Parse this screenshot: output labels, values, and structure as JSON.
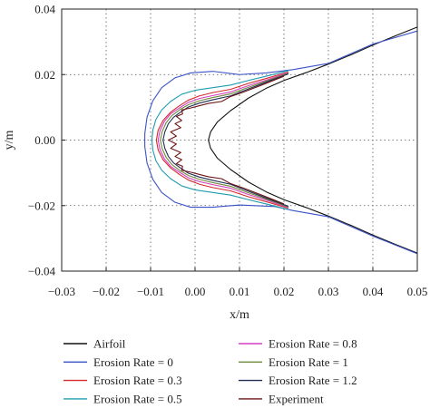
{
  "chart_data": {
    "type": "line",
    "xlabel": "x/m",
    "ylabel": "y/m",
    "xlim": [
      -0.03,
      0.05
    ],
    "ylim": [
      -0.04,
      0.04
    ],
    "xticks": [
      -0.03,
      -0.02,
      -0.01,
      0.0,
      0.01,
      0.02,
      0.03,
      0.04,
      0.05
    ],
    "xtick_labels": [
      "−0.03",
      "−0.02",
      "−0.01",
      "0.00",
      "0.01",
      "0.02",
      "0.03",
      "0.04",
      "0.05"
    ],
    "yticks": [
      -0.04,
      -0.02,
      0.0,
      0.02,
      0.04
    ],
    "ytick_labels": [
      "−0.04",
      "−0.02",
      "0.00",
      "0.02",
      "0.04"
    ],
    "grid": true,
    "legend_position": "below",
    "series": [
      {
        "name": "Airfoil",
        "color": "#111111",
        "points": [
          [
            0.05,
            -0.0345
          ],
          [
            0.045,
            -0.0318
          ],
          [
            0.04,
            -0.029
          ],
          [
            0.035,
            -0.026
          ],
          [
            0.03,
            -0.0232
          ],
          [
            0.025,
            -0.0206
          ],
          [
            0.02,
            -0.0182
          ],
          [
            0.016,
            -0.0158
          ],
          [
            0.012,
            -0.0128
          ],
          [
            0.008,
            -0.009
          ],
          [
            0.005,
            -0.0055
          ],
          [
            0.0035,
            -0.0025
          ],
          [
            0.003,
            0.0
          ],
          [
            0.0035,
            0.0025
          ],
          [
            0.005,
            0.0055
          ],
          [
            0.008,
            0.009
          ],
          [
            0.012,
            0.0128
          ],
          [
            0.016,
            0.0158
          ],
          [
            0.02,
            0.0182
          ],
          [
            0.025,
            0.0206
          ],
          [
            0.03,
            0.0232
          ],
          [
            0.035,
            0.026
          ],
          [
            0.04,
            0.029
          ],
          [
            0.045,
            0.0318
          ],
          [
            0.05,
            0.0345
          ]
        ]
      },
      {
        "name": "Erosion Rate = 0",
        "color": "#3b53c6",
        "points": [
          [
            0.05,
            -0.0347
          ],
          [
            0.04,
            -0.0293
          ],
          [
            0.03,
            -0.0234
          ],
          [
            0.022,
            -0.0215
          ],
          [
            0.018,
            -0.0203
          ],
          [
            0.01,
            -0.0198
          ],
          [
            0.004,
            -0.0205
          ],
          [
            -0.001,
            -0.0205
          ],
          [
            -0.0045,
            -0.019
          ],
          [
            -0.0075,
            -0.016
          ],
          [
            -0.0095,
            -0.012
          ],
          [
            -0.0108,
            -0.007
          ],
          [
            -0.0113,
            -0.002
          ],
          [
            -0.0113,
            0.002
          ],
          [
            -0.0108,
            0.007
          ],
          [
            -0.0095,
            0.012
          ],
          [
            -0.0075,
            0.016
          ],
          [
            -0.0045,
            0.019
          ],
          [
            -0.001,
            0.0205
          ],
          [
            0.004,
            0.021
          ],
          [
            0.01,
            0.02
          ],
          [
            0.016,
            0.0205
          ],
          [
            0.022,
            0.0215
          ],
          [
            0.03,
            0.0234
          ],
          [
            0.04,
            0.0293
          ],
          [
            0.05,
            0.0333
          ]
        ]
      },
      {
        "name": "Erosion Rate = 0.3",
        "color": "#d42a2a",
        "points": [
          [
            0.021,
            -0.0208
          ],
          [
            0.016,
            -0.0188
          ],
          [
            0.012,
            -0.0173
          ],
          [
            0.008,
            -0.0155
          ],
          [
            0.004,
            -0.0145
          ],
          [
            0.001,
            -0.0135
          ],
          [
            -0.0015,
            -0.0122
          ],
          [
            -0.0035,
            -0.0105
          ],
          [
            -0.0055,
            -0.0085
          ],
          [
            -0.0072,
            -0.006
          ],
          [
            -0.0083,
            -0.003
          ],
          [
            -0.0087,
            0.0
          ],
          [
            -0.0083,
            0.003
          ],
          [
            -0.0072,
            0.006
          ],
          [
            -0.0055,
            0.0085
          ],
          [
            -0.0035,
            0.0105
          ],
          [
            -0.0015,
            0.0122
          ],
          [
            0.001,
            0.0135
          ],
          [
            0.004,
            0.0145
          ],
          [
            0.008,
            0.0155
          ],
          [
            0.012,
            0.0173
          ],
          [
            0.016,
            0.0188
          ],
          [
            0.021,
            0.0208
          ]
        ]
      },
      {
        "name": "Erosion Rate = 0.5",
        "color": "#1f9bb0",
        "points": [
          [
            0.021,
            -0.0212
          ],
          [
            0.016,
            -0.0195
          ],
          [
            0.012,
            -0.0182
          ],
          [
            0.008,
            -0.0168
          ],
          [
            0.004,
            -0.016
          ],
          [
            0.0,
            -0.0152
          ],
          [
            -0.003,
            -0.014
          ],
          [
            -0.0055,
            -0.0118
          ],
          [
            -0.0075,
            -0.0092
          ],
          [
            -0.0088,
            -0.0063
          ],
          [
            -0.0095,
            -0.003
          ],
          [
            -0.0097,
            0.0
          ],
          [
            -0.0095,
            0.003
          ],
          [
            -0.0088,
            0.0063
          ],
          [
            -0.0075,
            0.0092
          ],
          [
            -0.0055,
            0.0118
          ],
          [
            -0.003,
            0.014
          ],
          [
            0.0,
            0.0152
          ],
          [
            0.004,
            0.016
          ],
          [
            0.008,
            0.0168
          ],
          [
            0.012,
            0.0182
          ],
          [
            0.016,
            0.0195
          ],
          [
            0.021,
            0.0212
          ]
        ]
      },
      {
        "name": "Erosion Rate = 0.8",
        "color": "#d43ec0",
        "points": [
          [
            0.021,
            -0.0206
          ],
          [
            0.016,
            -0.0183
          ],
          [
            0.012,
            -0.0166
          ],
          [
            0.008,
            -0.0147
          ],
          [
            0.004,
            -0.0136
          ],
          [
            0.001,
            -0.0127
          ],
          [
            -0.0015,
            -0.0115
          ],
          [
            -0.0035,
            -0.0098
          ],
          [
            -0.0055,
            -0.008
          ],
          [
            -0.0069,
            -0.0057
          ],
          [
            -0.0079,
            -0.0028
          ],
          [
            -0.0083,
            0.0
          ],
          [
            -0.0079,
            0.0028
          ],
          [
            -0.0069,
            0.0057
          ],
          [
            -0.0055,
            0.008
          ],
          [
            -0.0035,
            0.0098
          ],
          [
            -0.0015,
            0.0115
          ],
          [
            0.001,
            0.0127
          ],
          [
            0.004,
            0.0136
          ],
          [
            0.008,
            0.0147
          ],
          [
            0.012,
            0.0166
          ],
          [
            0.016,
            0.0183
          ],
          [
            0.021,
            0.0206
          ]
        ]
      },
      {
        "name": "Erosion Rate = 1",
        "color": "#6f8a3a",
        "points": [
          [
            0.021,
            -0.0204
          ],
          [
            0.016,
            -0.018
          ],
          [
            0.012,
            -0.0161
          ],
          [
            0.008,
            -0.0141
          ],
          [
            0.004,
            -0.013
          ],
          [
            0.001,
            -0.012
          ],
          [
            -0.0015,
            -0.0108
          ],
          [
            -0.0035,
            -0.0092
          ],
          [
            -0.0052,
            -0.0075
          ],
          [
            -0.0065,
            -0.0053
          ],
          [
            -0.0074,
            -0.0026
          ],
          [
            -0.0078,
            0.0
          ],
          [
            -0.0074,
            0.0026
          ],
          [
            -0.0065,
            0.0053
          ],
          [
            -0.0052,
            0.0075
          ],
          [
            -0.0035,
            0.0092
          ],
          [
            -0.0015,
            0.0108
          ],
          [
            0.001,
            0.012
          ],
          [
            0.004,
            0.013
          ],
          [
            0.008,
            0.0141
          ],
          [
            0.012,
            0.0161
          ],
          [
            0.016,
            0.018
          ],
          [
            0.021,
            0.0204
          ]
        ]
      },
      {
        "name": "Erosion Rate = 1.2",
        "color": "#1e2c52",
        "points": [
          [
            0.021,
            -0.0202
          ],
          [
            0.016,
            -0.0177
          ],
          [
            0.012,
            -0.0156
          ],
          [
            0.008,
            -0.0135
          ],
          [
            0.004,
            -0.0123
          ],
          [
            0.001,
            -0.0113
          ],
          [
            -0.0015,
            -0.0101
          ],
          [
            -0.0032,
            -0.0086
          ],
          [
            -0.0048,
            -0.007
          ],
          [
            -0.006,
            -0.005
          ],
          [
            -0.0068,
            -0.0025
          ],
          [
            -0.0072,
            0.0
          ],
          [
            -0.0068,
            0.0025
          ],
          [
            -0.006,
            0.005
          ],
          [
            -0.0048,
            0.007
          ],
          [
            -0.0032,
            0.0086
          ],
          [
            -0.0015,
            0.0101
          ],
          [
            0.001,
            0.0113
          ],
          [
            0.004,
            0.0123
          ],
          [
            0.008,
            0.0135
          ],
          [
            0.012,
            0.0156
          ],
          [
            0.016,
            0.0177
          ],
          [
            0.021,
            0.0202
          ]
        ]
      },
      {
        "name": "Experiment",
        "color": "#6b1414",
        "points": [
          [
            0.02,
            -0.0195
          ],
          [
            0.015,
            -0.0168
          ],
          [
            0.011,
            -0.0147
          ],
          [
            0.008,
            -0.0133
          ],
          [
            0.006,
            -0.0118
          ],
          [
            0.003,
            -0.0112
          ],
          [
            0.001,
            -0.0105
          ],
          [
            -0.001,
            -0.0098
          ],
          [
            -0.003,
            -0.0092
          ],
          [
            -0.0028,
            -0.008
          ],
          [
            -0.0042,
            -0.0072
          ],
          [
            -0.003,
            -0.006
          ],
          [
            -0.0045,
            -0.005
          ],
          [
            -0.0032,
            -0.0038
          ],
          [
            -0.0055,
            -0.0025
          ],
          [
            -0.0042,
            -0.0012
          ],
          [
            -0.006,
            0.0
          ],
          [
            -0.0042,
            0.0012
          ],
          [
            -0.0055,
            0.0025
          ],
          [
            -0.0032,
            0.0038
          ],
          [
            -0.0045,
            0.005
          ],
          [
            -0.003,
            0.006
          ],
          [
            -0.0042,
            0.0072
          ],
          [
            -0.0028,
            0.008
          ],
          [
            -0.003,
            0.0092
          ],
          [
            -0.001,
            0.0098
          ],
          [
            0.001,
            0.0105
          ],
          [
            0.003,
            0.0112
          ],
          [
            0.006,
            0.0118
          ],
          [
            0.008,
            0.0133
          ],
          [
            0.011,
            0.0147
          ],
          [
            0.015,
            0.0168
          ],
          [
            0.02,
            0.0195
          ]
        ]
      }
    ]
  }
}
